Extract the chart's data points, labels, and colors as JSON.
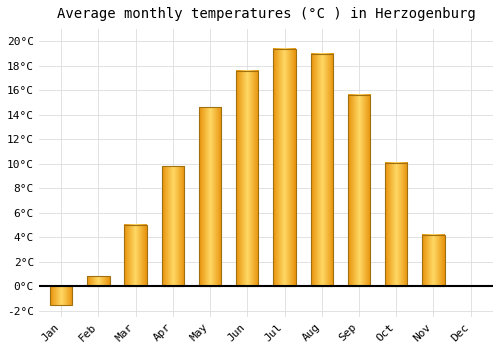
{
  "title": "Average monthly temperatures (°C ) in Herzogenburg",
  "months": [
    "Jan",
    "Feb",
    "Mar",
    "Apr",
    "May",
    "Jun",
    "Jul",
    "Aug",
    "Sep",
    "Oct",
    "Nov",
    "Dec"
  ],
  "temperatures": [
    -1.5,
    0.8,
    5.0,
    9.8,
    14.6,
    17.6,
    19.4,
    19.0,
    15.6,
    10.1,
    4.2,
    0.0
  ],
  "bar_color_center": "#FFD966",
  "bar_color_edge": "#E8920A",
  "bar_border_color": "#A07010",
  "ylim": [
    -2.5,
    21
  ],
  "yticks": [
    -2,
    0,
    2,
    4,
    6,
    8,
    10,
    12,
    14,
    16,
    18,
    20
  ],
  "background_color": "#FFFFFF",
  "grid_color": "#DDDDDD",
  "title_fontsize": 10,
  "tick_fontsize": 8,
  "bar_width": 0.6
}
